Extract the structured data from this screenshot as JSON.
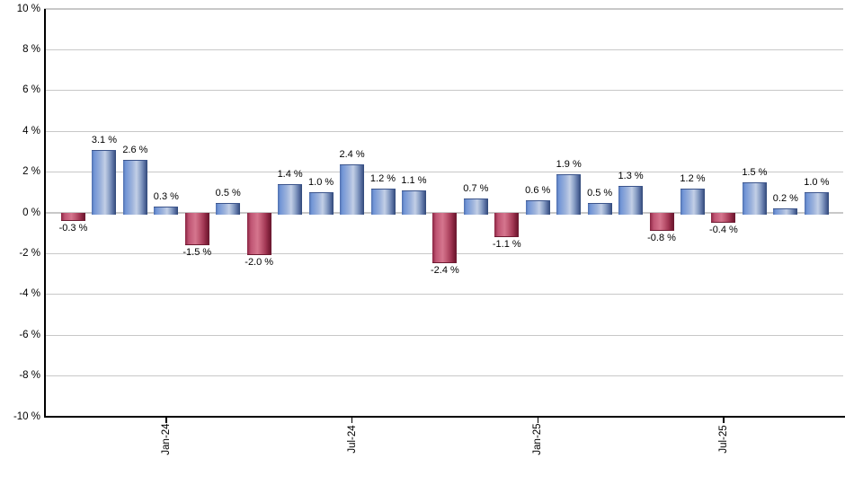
{
  "chart_data": {
    "type": "bar",
    "title": "",
    "description": "Monthly percent returns bar chart, blue for positive months and red for negative months",
    "values": [
      -0.3,
      3.1,
      2.6,
      0.3,
      -1.5,
      0.5,
      -2.0,
      1.4,
      1.0,
      2.4,
      1.2,
      1.1,
      -2.4,
      0.7,
      -1.1,
      0.6,
      1.9,
      0.5,
      1.3,
      -0.8,
      1.2,
      -0.4,
      1.5,
      0.2,
      1.0
    ],
    "value_labels": [
      "-0.3 %",
      "3.1 %",
      "2.6 %",
      "0.3 %",
      "-1.5 %",
      "0.5 %",
      "-2.0 %",
      "1.4 %",
      "1.0 %",
      "2.4 %",
      "1.2 %",
      "1.1 %",
      "-2.4 %",
      "0.7 %",
      "-1.1 %",
      "0.6 %",
      "1.9 %",
      "0.5 %",
      "1.3 %",
      "-0.8 %",
      "1.2 %",
      "-0.4 %",
      "1.5 %",
      "0.2 %",
      "1.0 %"
    ],
    "x_ticks": [
      {
        "bar_index": 3,
        "label": "Jan-24"
      },
      {
        "bar_index": 9,
        "label": "Jul-24"
      },
      {
        "bar_index": 15,
        "label": "Jan-25"
      },
      {
        "bar_index": 21,
        "label": "Jul-25"
      }
    ],
    "y_ticks": [
      10,
      8,
      6,
      4,
      2,
      0,
      -2,
      -4,
      -6,
      -8,
      -10
    ],
    "y_tick_labels": [
      "10 %",
      "8 %",
      "6 %",
      "4 %",
      "2 %",
      "0 %",
      "-2 %",
      "-4 %",
      "-6 %",
      "-8 %",
      "-10 %"
    ],
    "ylim": [
      -10,
      10
    ],
    "grid": true,
    "legend": false,
    "colors": {
      "positive_bar": "#7195d6",
      "positive_bar_highlight": "#c3cfe6",
      "positive_bar_dark": "#2f4778",
      "negative_bar": "#bf5472",
      "negative_bar_highlight": "#d5758e",
      "negative_bar_dark": "#681830",
      "gridline": "#c8c8c8",
      "axis": "#000000",
      "label_text": "#000000",
      "background": "#ffffff"
    }
  }
}
